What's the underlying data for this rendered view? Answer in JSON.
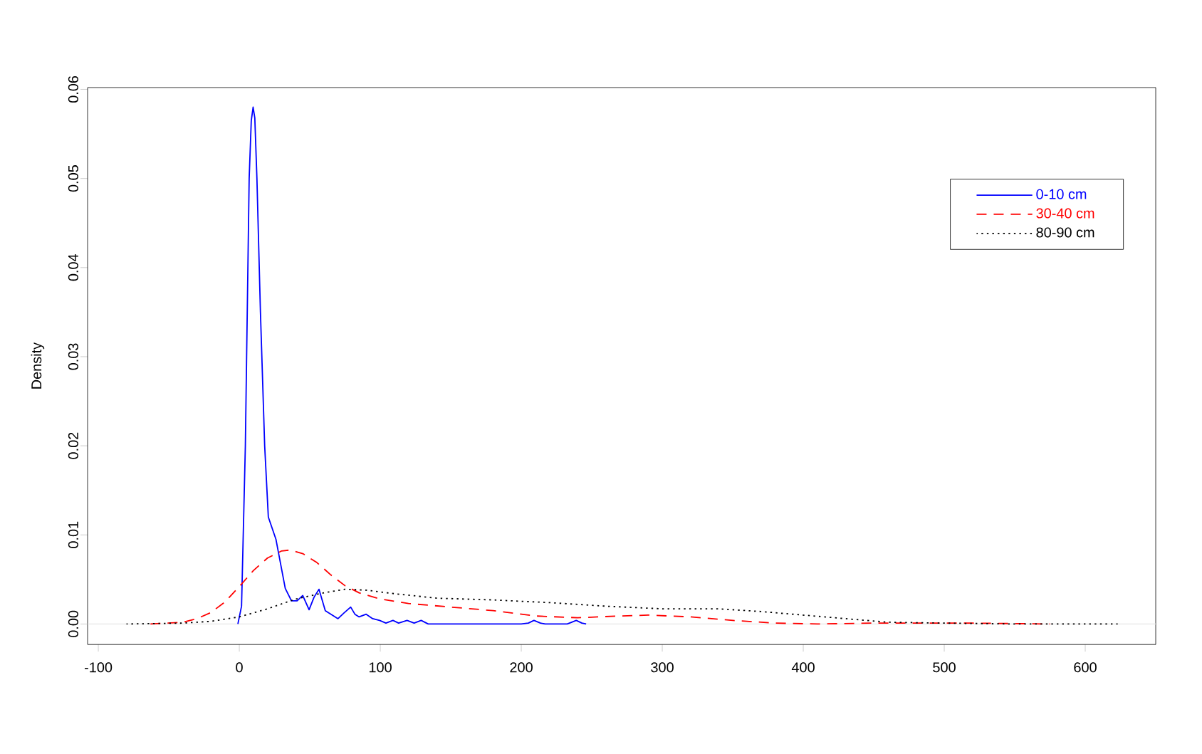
{
  "chart_data": {
    "type": "line",
    "ylabel": "Density",
    "xlim": [
      -107.6,
      650
    ],
    "ylim": [
      -0.0023,
      0.0602
    ],
    "xticks": [
      -100,
      0,
      100,
      200,
      300,
      400,
      500,
      600
    ],
    "yticks": [
      {
        "value": 0,
        "label": "0.00"
      },
      {
        "value": 0.01,
        "label": "0.01"
      },
      {
        "value": 0.02,
        "label": "0.02"
      },
      {
        "value": 0.03,
        "label": "0.03"
      },
      {
        "value": 0.04,
        "label": "0.04"
      },
      {
        "value": 0.05,
        "label": "0.05"
      },
      {
        "value": 0.06,
        "label": "0.06"
      }
    ],
    "legend": "top right",
    "grid": false,
    "ref_lines": [
      {
        "axis": "y",
        "value": 0,
        "color": "#e6e6e6"
      }
    ],
    "series": [
      {
        "name": "0-10 cm",
        "color": "#0000ff",
        "line_style": "solid",
        "x": [
          -1,
          1.6,
          4.3,
          7,
          8.5,
          9.8,
          11,
          12.5,
          15,
          18,
          20.6,
          26,
          29,
          32.6,
          37,
          41,
          45,
          49.5,
          53,
          56.5,
          61,
          65,
          70,
          74,
          79,
          82,
          85,
          90,
          94.6,
          99.5,
          104,
          109,
          113,
          119,
          124,
          129,
          134,
          200,
          205,
          209,
          213.6,
          217,
          232.6,
          239,
          243,
          246
        ],
        "values": [
          0,
          0.002,
          0.02,
          0.05,
          0.0565,
          0.058,
          0.0568,
          0.05,
          0.035,
          0.02,
          0.012,
          0.0095,
          0.007,
          0.004,
          0.0026,
          0.0026,
          0.0032,
          0.0016,
          0.003,
          0.0039,
          0.0015,
          0.0011,
          0.0006,
          0.0012,
          0.0019,
          0.0011,
          0.0008,
          0.0011,
          0.0006,
          0.0004,
          0.0001,
          0.0004,
          0.0001,
          0.0004,
          0.0001,
          0.0004,
          0,
          0,
          0.0001,
          0.0004,
          0.0001,
          0,
          0,
          0.0004,
          0.0001,
          0
        ]
      },
      {
        "name": "30-40 cm",
        "color": "#ff0000",
        "line_style": "dashed",
        "x": [
          -63,
          -40,
          -30,
          -20,
          -10,
          0,
          10,
          20,
          30,
          36,
          45,
          55,
          65,
          75,
          85,
          100,
          120,
          150,
          180,
          210,
          240,
          270,
          290,
          320,
          350,
          380,
          410,
          450,
          480,
          520,
          575
        ],
        "values": [
          0,
          0.0002,
          0.0006,
          0.0013,
          0.0025,
          0.0042,
          0.006,
          0.0074,
          0.0082,
          0.0083,
          0.0079,
          0.0069,
          0.0055,
          0.0043,
          0.0035,
          0.0028,
          0.0023,
          0.0019,
          0.0015,
          0.0009,
          0.0007,
          0.0009,
          0.001,
          0.0008,
          0.0004,
          0.0001,
          0,
          0.0001,
          0.0001,
          0.0001,
          0
        ]
      },
      {
        "name": "80-90 cm",
        "color": "#000000",
        "line_style": "dotted",
        "x": [
          -80,
          -40,
          -20,
          0,
          20,
          40,
          60,
          75,
          90,
          110,
          140,
          180,
          220,
          260,
          300,
          340,
          370,
          400,
          430,
          460,
          500,
          550,
          623
        ],
        "values": [
          0,
          0.0001,
          0.0003,
          0.0008,
          0.0017,
          0.0028,
          0.0035,
          0.0039,
          0.0038,
          0.0034,
          0.0029,
          0.0027,
          0.0024,
          0.002,
          0.0017,
          0.0017,
          0.0014,
          0.001,
          0.0006,
          0.0002,
          0.0001,
          0,
          0
        ]
      }
    ]
  }
}
